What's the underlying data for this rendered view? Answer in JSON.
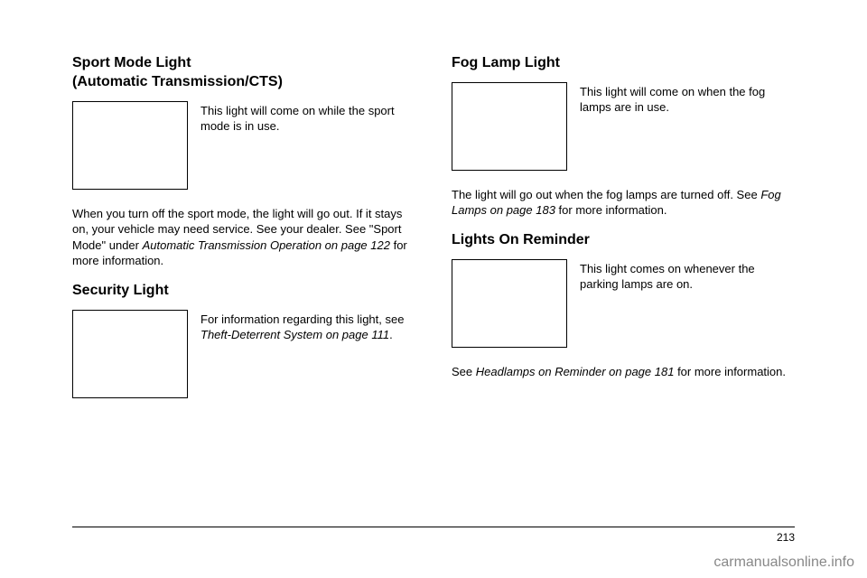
{
  "left": {
    "section1": {
      "heading_line1": "Sport Mode Light",
      "heading_line2": "(Automatic Transmission/CTS)",
      "icon_text": "This light will come on while the sport mode is in use.",
      "body_pre": "When you turn off the sport mode, the light will go out. If it stays on, your vehicle may need service. See your dealer. See \"Sport Mode\" under ",
      "body_italic": "Automatic Transmission Operation on page 122",
      "body_post": " for more information."
    },
    "section2": {
      "heading": "Security Light",
      "icon_text_pre": "For information regarding this light, see ",
      "icon_text_italic": "Theft-Deterrent System on page 111",
      "icon_text_post": "."
    }
  },
  "right": {
    "section1": {
      "heading": "Fog Lamp Light",
      "icon_text": "This light will come on when the fog lamps are in use.",
      "body_pre": "The light will go out when the fog lamps are turned off. See ",
      "body_italic": "Fog Lamps on page 183",
      "body_post": " for more information."
    },
    "section2": {
      "heading": "Lights On Reminder",
      "icon_text": "This light comes on whenever the parking lamps are on.",
      "body_pre": "See ",
      "body_italic": "Headlamps on Reminder on page 181",
      "body_post": " for more information."
    }
  },
  "page_number": "213",
  "watermark": "carmanualsonline.info"
}
